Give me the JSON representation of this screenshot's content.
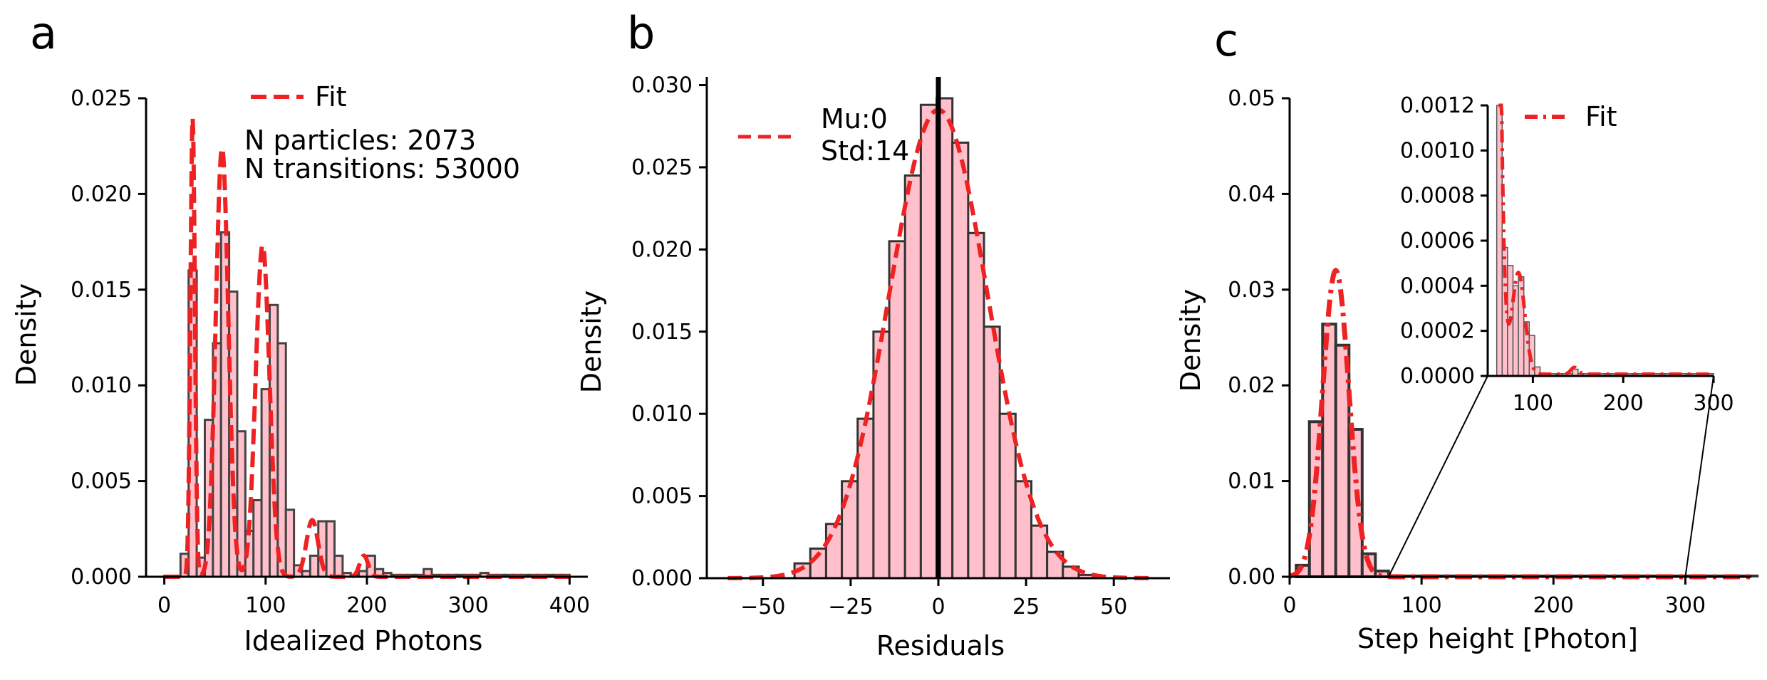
{
  "chart_data": [
    {
      "panel": "a",
      "type": "bar",
      "xlabel": "Idealized Photons",
      "ylabel": "Density",
      "xlim": [
        -18,
        418
      ],
      "ylim": [
        0,
        0.025
      ],
      "xticks": [
        0,
        100,
        200,
        300,
        400
      ],
      "yticks": [
        "0.000",
        "0.005",
        "0.010",
        "0.015",
        "0.020",
        "0.025"
      ],
      "bar_color": "#ffc0cb",
      "fit_color": "#ee2222",
      "bins": {
        "edges": [
          0,
          8,
          16,
          24,
          32,
          40,
          48,
          56,
          64,
          72,
          80,
          88,
          96,
          104,
          112,
          120,
          128,
          136,
          144,
          152,
          160,
          168,
          176,
          184,
          192,
          200,
          208,
          216,
          224,
          232,
          240,
          248,
          256,
          264,
          272,
          280,
          288,
          296,
          304,
          312,
          320,
          328,
          336,
          344,
          352,
          360,
          368,
          376,
          384,
          392,
          400
        ],
        "density": [
          5e-05,
          5e-05,
          0.0012,
          0.016,
          0.001,
          0.0082,
          0.0122,
          0.018,
          0.0149,
          0.0076,
          0.0024,
          0.004,
          0.0098,
          0.0142,
          0.0122,
          0.0035,
          0.0006,
          0.0003,
          0.0011,
          0.0029,
          0.0029,
          0.0011,
          0.0002,
          0.0001,
          0.0003,
          0.0011,
          0.0004,
          0.0002,
          0.0001,
          0.0001,
          0.0001,
          0.0001,
          0.0004,
          0.0001,
          0.0001,
          0.0001,
          0.0001,
          0.0001,
          0.0001,
          0.0002,
          0.0001,
          0.0001,
          0.0001,
          0.0001,
          0.0001,
          0.0001,
          0.0001,
          0.0001,
          0.0001,
          0.0001
        ]
      },
      "fit": [
        {
          "mu": 28,
          "sigma": 2.2,
          "weight": 0.132
        },
        {
          "mu": 57,
          "sigma": 6.2,
          "weight": 0.348
        },
        {
          "mu": 97,
          "sigma": 6.8,
          "weight": 0.295
        },
        {
          "mu": 146,
          "sigma": 5.8,
          "weight": 0.043
        },
        {
          "mu": 197,
          "sigma": 4.2,
          "weight": 0.0116
        }
      ],
      "legend": [
        {
          "label": "Fit",
          "style": "dashed"
        }
      ],
      "annotations": [
        "N particles: 2073",
        "N transitions: 53000"
      ]
    },
    {
      "panel": "b",
      "type": "bar",
      "xlabel": "Residuals",
      "ylabel": "Density",
      "xlim": [
        -66,
        66
      ],
      "ylim": [
        0,
        0.0305
      ],
      "xticks": [
        "−50",
        "−25",
        "0",
        "25",
        "50"
      ],
      "xtick_values": [
        -50,
        -25,
        0,
        25,
        50
      ],
      "yticks": [
        "0.000",
        "0.005",
        "0.010",
        "0.015",
        "0.020",
        "0.025",
        "0.030"
      ],
      "bar_color": "#ffc0cb",
      "fit_color": "#ee2222",
      "vline_x": 0,
      "bins": {
        "edges": [
          -41,
          -36.5,
          -32,
          -27.5,
          -23,
          -18.5,
          -14,
          -9.5,
          -5,
          -0.5,
          4,
          8.5,
          13,
          17.5,
          22,
          26.5,
          31,
          35.5,
          40,
          44.5
        ],
        "density": [
          0.0009,
          0.0018,
          0.0033,
          0.0059,
          0.0097,
          0.015,
          0.0205,
          0.0245,
          0.0288,
          0.0292,
          0.0265,
          0.021,
          0.0153,
          0.01,
          0.0059,
          0.0032,
          0.0016,
          0.0007,
          0.0002
        ]
      },
      "fit": {
        "mu": 0,
        "sigma": 14
      },
      "legend": [
        {
          "label": "Mu:0",
          "style": "dashed"
        },
        {
          "label": "Std:14",
          "style": "none"
        }
      ]
    },
    {
      "panel": "c",
      "type": "bar",
      "xlabel": "Step height [Photon]",
      "ylabel": "Density",
      "xlim": [
        0,
        350
      ],
      "ylim": [
        0,
        0.05
      ],
      "xticks": [
        0,
        100,
        200,
        300
      ],
      "yticks": [
        "0.00",
        "0.01",
        "0.02",
        "0.03",
        "0.04",
        "0.05"
      ],
      "bar_color": "#ffc0cb",
      "fit_color": "#ee2222",
      "bins": {
        "edges": [
          5,
          15,
          25,
          35,
          45,
          55,
          65,
          75
        ],
        "density": [
          0.0012,
          0.0162,
          0.0264,
          0.0242,
          0.0154,
          0.0024,
          0.0006
        ]
      },
      "fit": {
        "mu": 35,
        "sigma": 10,
        "peak": 0.032
      },
      "tail": {
        "from": 75,
        "to": 350,
        "level": 0.00015
      },
      "inset": {
        "xlim": [
          50,
          300
        ],
        "ylim": [
          0,
          0.0012
        ],
        "xticks": [
          100,
          200,
          300
        ],
        "yticks": [
          "0.0000",
          "0.0002",
          "0.0004",
          "0.0006",
          "0.0008",
          "0.0010",
          "0.0012"
        ],
        "zoom_from": [
          75,
          300
        ],
        "bins": {
          "edges": [
            60,
            66,
            72,
            78,
            84,
            90,
            96,
            102,
            108,
            114,
            120,
            126,
            132,
            138,
            144,
            150,
            156,
            162,
            168,
            174,
            180,
            186,
            192,
            198,
            204,
            210,
            216,
            222,
            228,
            234,
            240,
            246,
            252,
            258,
            264,
            270,
            276,
            282,
            288,
            294,
            300
          ],
          "density": [
            0.0012,
            0.00057,
            0.00049,
            0.0004,
            0.00044,
            0.00024,
            0.00018,
            4e-05,
            1e-05,
            1e-05,
            1e-05,
            1e-05,
            1e-05,
            1e-05,
            3e-05,
            1e-05,
            1e-05,
            1e-05,
            1e-05,
            1e-05,
            1e-05,
            1e-05,
            1e-05,
            1e-05,
            1e-05,
            1e-05,
            1e-05,
            1e-05,
            1e-05,
            1e-05,
            1e-05,
            1e-05,
            1e-05,
            1e-05,
            1e-05,
            1e-05,
            1e-05,
            1e-05,
            1e-05,
            1e-05
          ]
        },
        "legend": [
          {
            "label": "Fit",
            "style": "dashdot"
          }
        ]
      }
    }
  ]
}
